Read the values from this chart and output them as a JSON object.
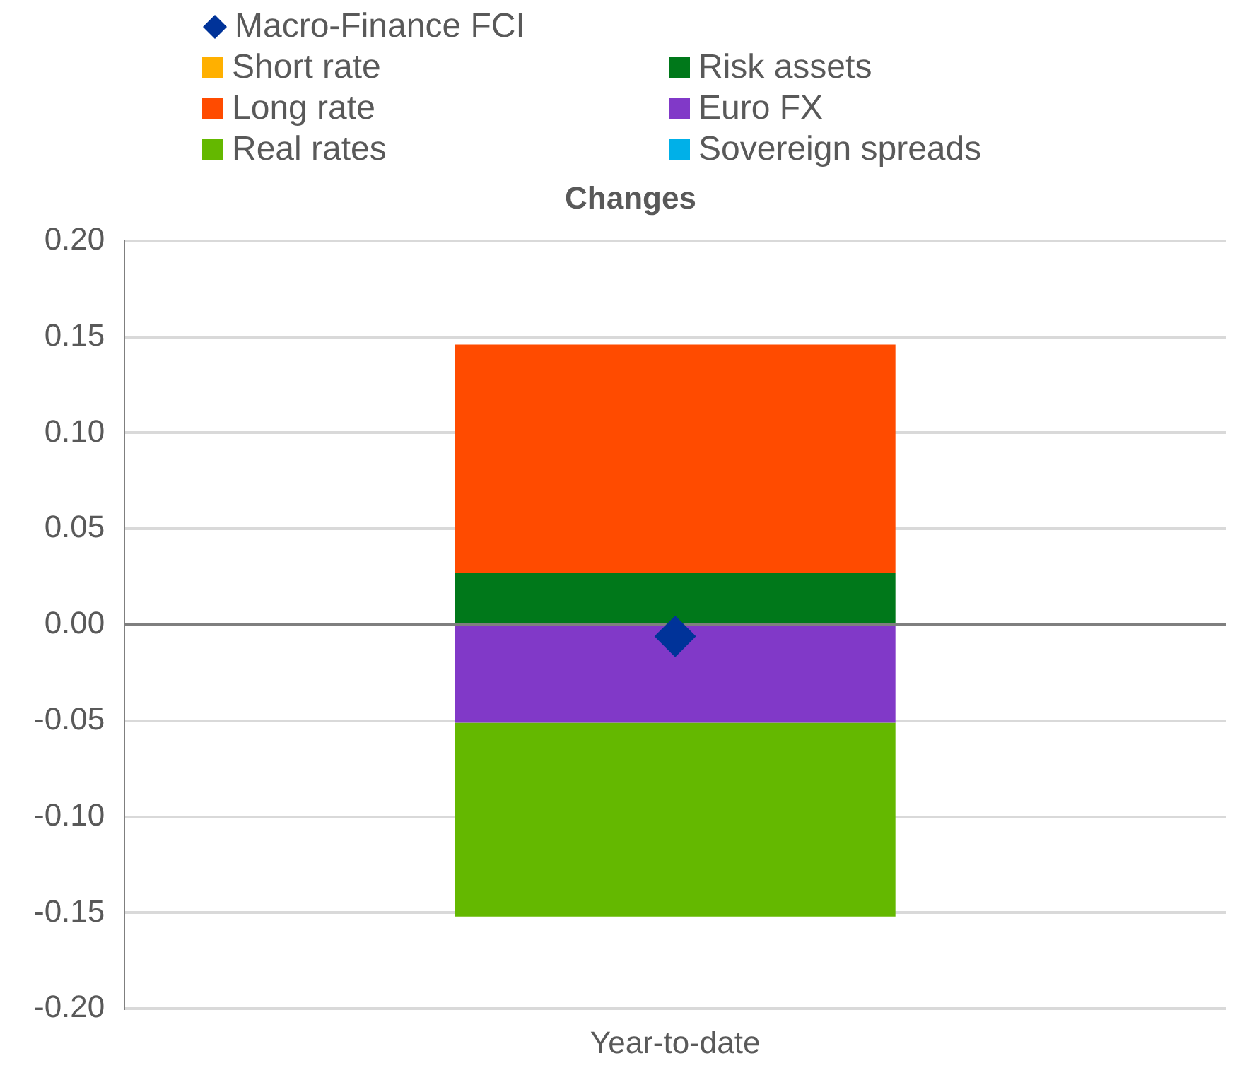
{
  "chart_data": {
    "type": "bar",
    "title": "Changes",
    "categories": [
      "Year-to-date"
    ],
    "stacked": true,
    "series": [
      {
        "name": "Macro-Finance FCI",
        "type": "scatter",
        "marker": "diamond",
        "color": "#003399",
        "x": [
          "Year-to-date"
        ],
        "values": [
          -0.006
        ]
      },
      {
        "name": "Short rate",
        "color": "#ffb000",
        "values": [
          0
        ]
      },
      {
        "name": "Risk assets",
        "color": "#00781a",
        "values": [
          0.027
        ]
      },
      {
        "name": "Long rate",
        "color": "#ff4b00",
        "values": [
          0.119
        ]
      },
      {
        "name": "Euro FX",
        "color": "#8139c8",
        "values": [
          -0.051
        ]
      },
      {
        "name": "Real rates",
        "color": "#64b800",
        "values": [
          -0.101
        ]
      },
      {
        "name": "Sovereign spreads",
        "color": "#00b0e8",
        "values": [
          0
        ]
      }
    ],
    "ylim": [
      -0.2,
      0.2
    ],
    "yticks": [
      {
        "value": -0.2,
        "label": "-0.20"
      },
      {
        "value": -0.15,
        "label": "-0.15"
      },
      {
        "value": -0.1,
        "label": "-0.10"
      },
      {
        "value": -0.05,
        "label": "-0.05"
      },
      {
        "value": 0,
        "label": "0.00"
      },
      {
        "value": 0.05,
        "label": "0.05"
      },
      {
        "value": 0.1,
        "label": "0.10"
      },
      {
        "value": 0.15,
        "label": "0.15"
      },
      {
        "value": 0.2,
        "label": "0.20"
      }
    ],
    "grid": "y",
    "legend": "top"
  }
}
